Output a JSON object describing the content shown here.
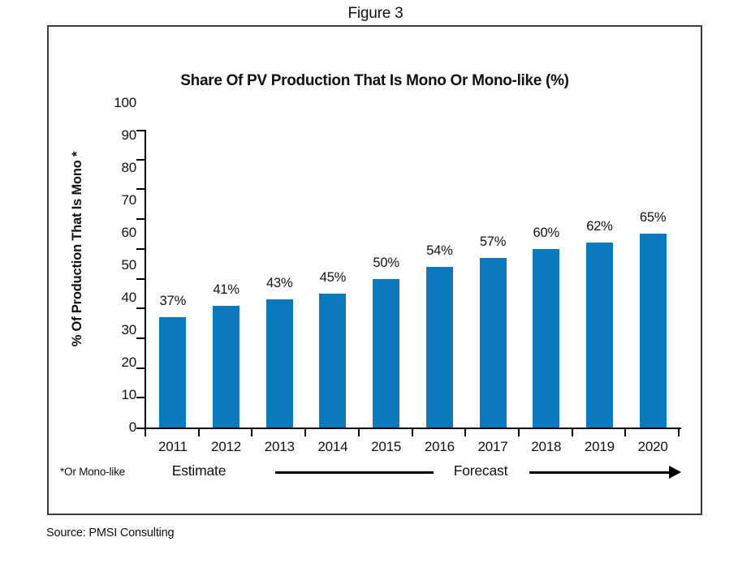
{
  "figure_label": "Figure 3",
  "source_note": "Source: PMSI Consulting",
  "colors": {
    "bar_fill": "#0b79be",
    "box_border": "#3d3d3d",
    "axis": "#000000",
    "text": "#111111"
  },
  "chart_data": {
    "type": "bar",
    "title": "Share Of PV Production That Is Mono Or Mono-like (%)",
    "ylabel": "% Of Production That Is Mono *",
    "xlabel": "",
    "categories": [
      "2011",
      "2012",
      "2013",
      "2014",
      "2015",
      "2016",
      "2017",
      "2018",
      "2019",
      "2020"
    ],
    "values": [
      37,
      41,
      43,
      45,
      50,
      54,
      57,
      60,
      62,
      65
    ],
    "bar_labels": [
      "37%",
      "41%",
      "43%",
      "45%",
      "50%",
      "54%",
      "57%",
      "60%",
      "62%",
      "65%"
    ],
    "ylim": [
      0,
      100
    ],
    "ytick_step": 10,
    "grid": false,
    "legend": "none",
    "footnote": "*Or Mono-like",
    "annotations": {
      "estimate_label": "Estimate",
      "forecast_label": "Forecast"
    }
  }
}
